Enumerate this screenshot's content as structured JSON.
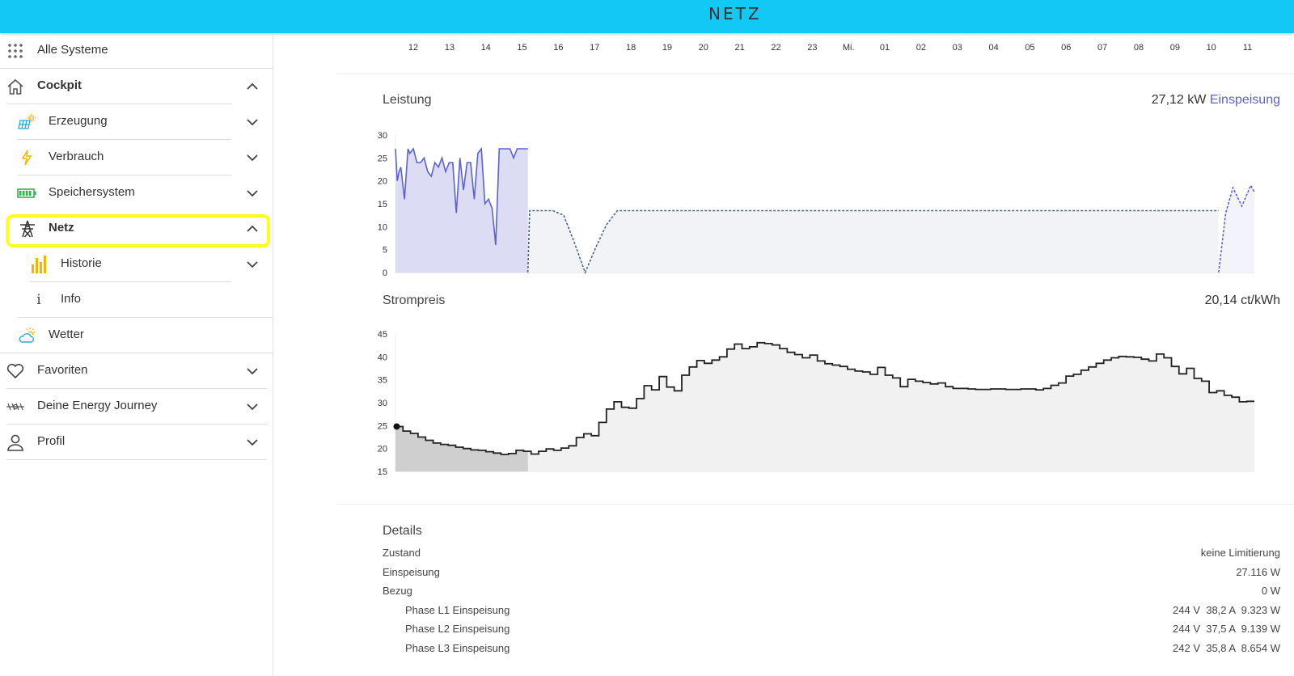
{
  "header": {
    "logo": "NETZ",
    "accent": "#12c8f5"
  },
  "sidebar": {
    "items": [
      {
        "label": "Alle Systeme",
        "icon": "grid-icon",
        "bold": false
      },
      {
        "label": "Cockpit",
        "icon": "home-icon",
        "bold": true,
        "expanded": true
      },
      {
        "label": "Erzeugung",
        "icon": "solar-panel-icon",
        "bold": false
      },
      {
        "label": "Verbrauch",
        "icon": "lightning-icon",
        "bold": false
      },
      {
        "label": "Speichersystem",
        "icon": "battery-icon",
        "bold": false
      },
      {
        "label": "Netz",
        "icon": "power-tower-icon",
        "bold": true,
        "expanded": true,
        "highlighted": true
      },
      {
        "label": "Historie",
        "icon": "bar-chart-icon",
        "bold": false
      },
      {
        "label": "Info",
        "icon": "info-icon",
        "bold": false
      },
      {
        "label": "Wetter",
        "icon": "weather-icon",
        "bold": false
      },
      {
        "label": "Favoriten",
        "icon": "heart-icon",
        "bold": false
      },
      {
        "label": "Deine Energy Journey",
        "icon": "journey-icon",
        "bold": false
      },
      {
        "label": "Profil",
        "icon": "user-icon",
        "bold": false
      }
    ]
  },
  "timeline": {
    "hours": [
      "12",
      "13",
      "14",
      "15",
      "16",
      "17",
      "18",
      "19",
      "20",
      "21",
      "22",
      "23",
      "Mi.",
      "01",
      "02",
      "03",
      "04",
      "05",
      "06",
      "07",
      "08",
      "09",
      "10",
      "11"
    ]
  },
  "leistung": {
    "title": "Leistung",
    "value": "27,12 kW",
    "mode": "Einspeisung",
    "accent": "#5a62d6"
  },
  "strompreis": {
    "title": "Strompreis",
    "value": "20,14 ct/kWh"
  },
  "chart_data": [
    {
      "type": "area",
      "title": "Leistung",
      "ylim": [
        0,
        30
      ],
      "yticks": [
        "0",
        "5",
        "10",
        "15",
        "20",
        "25",
        "30"
      ],
      "x_range_hours": [
        11.6,
        35.6
      ],
      "series": [
        {
          "style": "solid",
          "x": [
            11.6,
            11.65,
            11.7,
            11.75,
            11.85,
            11.95,
            12.0,
            12.1,
            12.2,
            12.3,
            12.4,
            12.5,
            12.6,
            12.7,
            12.8,
            12.9,
            13.0,
            13.1,
            13.2,
            13.3,
            13.4,
            13.5,
            13.6,
            13.7,
            13.8,
            13.9,
            14.0,
            14.1,
            14.2,
            14.3,
            14.4,
            14.5,
            14.6,
            14.7,
            14.8,
            14.9,
            15.0,
            15.1,
            15.2,
            15.3
          ],
          "y": [
            27,
            20,
            22,
            23,
            16,
            27,
            26,
            27,
            24,
            24,
            25,
            22,
            21,
            24,
            23,
            25,
            22,
            24,
            24,
            13,
            25,
            18,
            24,
            24,
            16,
            26,
            27,
            15,
            16,
            14,
            6,
            27,
            27,
            27,
            27,
            25,
            27,
            27,
            27,
            27
          ]
        },
        {
          "style": "dashed",
          "x": [
            15.3,
            15.35,
            16.0,
            16.3,
            16.6,
            16.9,
            17.2,
            17.5,
            17.8,
            18.0,
            34.6
          ],
          "y": [
            0,
            13.5,
            13.5,
            12.5,
            6.5,
            0,
            5.5,
            10.5,
            13.5,
            13.5,
            13.5
          ]
        },
        {
          "style": "dashed",
          "x": [
            34.6,
            34.8,
            35.0,
            35.25,
            35.5,
            35.6
          ],
          "y": [
            0,
            13,
            18.5,
            14.5,
            19,
            17.5
          ]
        }
      ]
    },
    {
      "type": "line",
      "title": "Strompreis",
      "ylim": [
        15,
        45
      ],
      "yticks": [
        "15",
        "20",
        "25",
        "30",
        "35",
        "40",
        "45"
      ],
      "x_range_hours": [
        11.6,
        35.6
      ],
      "step_size_hours": 0.25,
      "values": [
        24.8,
        23.8,
        23.3,
        22.5,
        21.8,
        21.2,
        20.9,
        20.7,
        20.3,
        20.0,
        19.7,
        19.6,
        19.3,
        19.0,
        18.7,
        18.9,
        19.6,
        19.4,
        18.8,
        19.4,
        19.9,
        19.6,
        20.1,
        20.6,
        22.4,
        23.2,
        22.8,
        25.7,
        28.6,
        30.2,
        29.0,
        28.8,
        30.9,
        33.7,
        32.8,
        35.7,
        33.4,
        32.6,
        36.0,
        37.8,
        39.2,
        38.6,
        39.3,
        40.0,
        41.7,
        42.8,
        41.8,
        42.2,
        43.1,
        42.9,
        42.6,
        41.8,
        41.0,
        40.5,
        39.8,
        40.4,
        39.1,
        38.5,
        38.2,
        37.9,
        37.3,
        36.9,
        36.7,
        36.2,
        37.7,
        36.0,
        35.4,
        33.5,
        35.1,
        34.7,
        34.4,
        34.1,
        34.3,
        33.5,
        33.1,
        33.1,
        33.0,
        32.9,
        32.9,
        33.0,
        33.0,
        32.9,
        32.9,
        33.0,
        33.0,
        32.8,
        33.1,
        33.8,
        34.3,
        35.8,
        36.2,
        37.1,
        37.8,
        38.6,
        39.3,
        39.8,
        40.1,
        40.0,
        39.9,
        39.5,
        39.1,
        40.6,
        39.8,
        37.9,
        36.3,
        37.5,
        35.3,
        34.7,
        32.2,
        32.6,
        31.6,
        31.2,
        30.2,
        30.3
      ]
    }
  ],
  "details": {
    "title": "Details",
    "rows": [
      {
        "label": "Zustand",
        "value": "keine Limitierung",
        "indent": false
      },
      {
        "label": "Einspeisung",
        "value": "27.116 W",
        "indent": false
      },
      {
        "label": "Bezug",
        "value": "0 W",
        "indent": false
      },
      {
        "label": "Phase L1 Einspeisung",
        "value": "244 V  38,2 A  9.323 W",
        "indent": true
      },
      {
        "label": "Phase L2 Einspeisung",
        "value": "244 V  37,5 A  9.139 W",
        "indent": true
      },
      {
        "label": "Phase L3 Einspeisung",
        "value": "242 V  35,8 A  8.654 W",
        "indent": true
      }
    ]
  }
}
